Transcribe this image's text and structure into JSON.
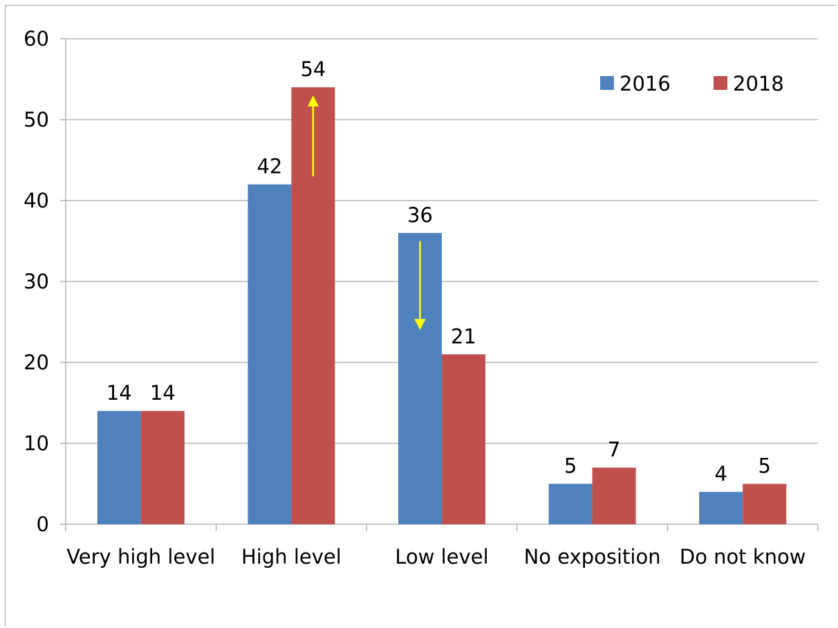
{
  "chart_data": {
    "type": "bar",
    "title": "",
    "xlabel": "",
    "ylabel": "",
    "categories": [
      "Very high level",
      "High level",
      "Low level",
      "No exposition",
      "Do not know"
    ],
    "series": [
      {
        "name": "2016",
        "values": [
          14,
          42,
          36,
          5,
          4
        ],
        "color": "#4f81bd"
      },
      {
        "name": "2018",
        "values": [
          14,
          54,
          21,
          7,
          5
        ],
        "color": "#c0504d"
      }
    ],
    "ylim": [
      0,
      60
    ],
    "yticks": [
      0,
      10,
      20,
      30,
      40,
      50,
      60
    ],
    "grid": true,
    "legend_position": "top-right",
    "annotations": [
      {
        "type": "arrow",
        "category": "High level",
        "direction": "up",
        "from_value": 43,
        "to_value": 53,
        "color": "#ffff00"
      },
      {
        "type": "arrow",
        "category": "Low level",
        "direction": "down",
        "from_value": 35,
        "to_value": 24,
        "color": "#ffff00"
      }
    ]
  }
}
